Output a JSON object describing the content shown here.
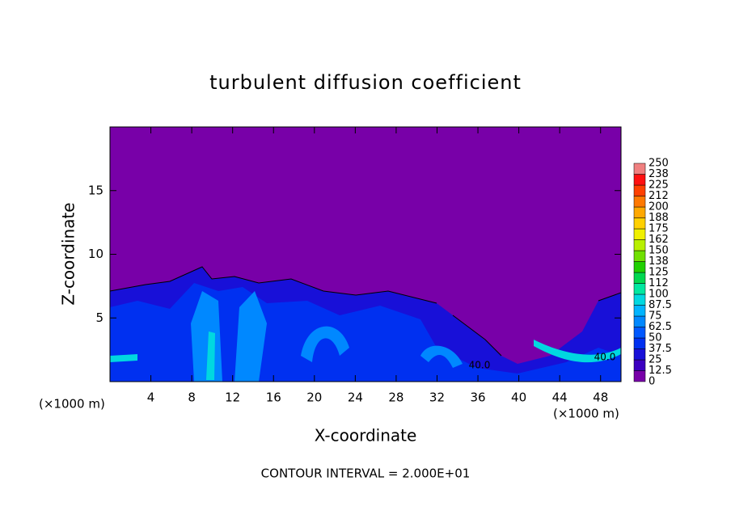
{
  "chart_data": {
    "type": "contour",
    "title": "turbulent diffusion coefficient",
    "x_label": "X-coordinate",
    "y_label": "Z-coordinate",
    "x_unit": "(×1000 m)",
    "y_unit": "(×1000 m)",
    "footer": "CONTOUR INTERVAL = 2.000E+01",
    "contour_labels": [
      "40.0",
      "40.0"
    ],
    "xlim": [
      0,
      50
    ],
    "ylim": [
      0,
      20
    ],
    "xticks": [
      4,
      8,
      12,
      16,
      20,
      24,
      28,
      32,
      36,
      40,
      44,
      48
    ],
    "yticks": [
      5,
      10,
      15
    ],
    "colorbar": {
      "levels": [
        0,
        12.5,
        25,
        37.5,
        50,
        62.5,
        75,
        87.5,
        100,
        {
          "value": 112.5,
          "label": "112"
        },
        125,
        {
          "value": 137.5,
          "label": "138"
        },
        150,
        {
          "value": 162.5,
          "label": "162"
        },
        175,
        {
          "value": 187.5,
          "label": "188"
        },
        200,
        {
          "value": 212.5,
          "label": "212"
        },
        225,
        {
          "value": 237.5,
          "label": "238"
        },
        250
      ],
      "colors": [
        "#7800a8",
        "#3c00c0",
        "#1810d8",
        "#0030f0",
        "#0058ff",
        "#0088ff",
        "#00b4ff",
        "#00d8e0",
        "#00e8a0",
        "#00d850",
        "#20d000",
        "#70e000",
        "#b8f000",
        "#f0f000",
        "#ffd000",
        "#ffa800",
        "#ff7800",
        "#ff4000",
        "#ff1010",
        "#f08080"
      ]
    }
  }
}
